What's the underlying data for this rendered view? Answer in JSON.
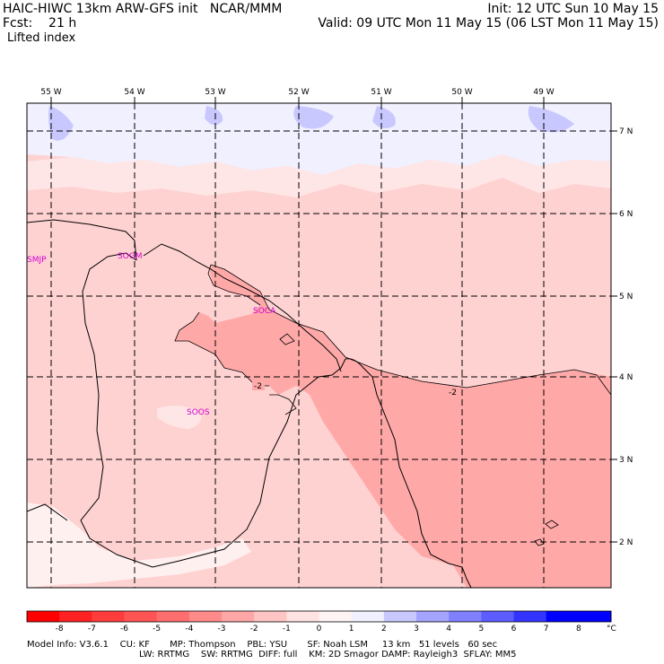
{
  "header": {
    "line1_left": "HAIC-HIWC 13km ARW-GFS init   NCAR/MMM",
    "line1_right": "Init: 12 UTC Sun 10 May 15",
    "line2_left": "Fcst:    21 h",
    "line2_right": "Valid: 09 UTC Mon 11 May 15 (06 LST Mon 11 May 15)",
    "field_name": "Lifted index"
  },
  "map": {
    "longitude_labels": [
      "55 W",
      "54 W",
      "53 W",
      "52 W",
      "51 W",
      "50 W",
      "49 W"
    ],
    "latitude_labels": [
      "7 N",
      "6 N",
      "5 N",
      "4 N",
      "3 N",
      "2 N"
    ],
    "stations": [
      "SMJP",
      "SOGM",
      "SOCA",
      "SOOS"
    ],
    "contour_labels": [
      "-2",
      "-2"
    ]
  },
  "colorbar": {
    "tick_labels": [
      "-8",
      "-7",
      "-6",
      "-5",
      "-4",
      "-3",
      "-2",
      "-1",
      "0",
      "1",
      "2",
      "3",
      "4",
      "5",
      "6",
      "7",
      "8"
    ],
    "unit": "°C",
    "colors": [
      "#ff0000",
      "#ff2222",
      "#ff3c3c",
      "#ff5454",
      "#ff6e6e",
      "#ff8a8a",
      "#ffa6a6",
      "#ffc4c4",
      "#ffe2e2",
      "#fff4f4",
      "#f0f0ff",
      "#c8c8ff",
      "#a4a4ff",
      "#8080ff",
      "#5c5cff",
      "#3434ff",
      "#0000ff"
    ]
  },
  "footer": {
    "line1": "Model Info: V3.6.1    CU: KF       MP: Thompson    PBL: YSU       SF: Noah LSM     13 km   51 levels   60 sec",
    "line2": "LW: RRTMG    SW: RRTMG  DIFF: full    KM: 2D Smagor DAMP: Rayleigh3  SFLAY: MM5"
  }
}
